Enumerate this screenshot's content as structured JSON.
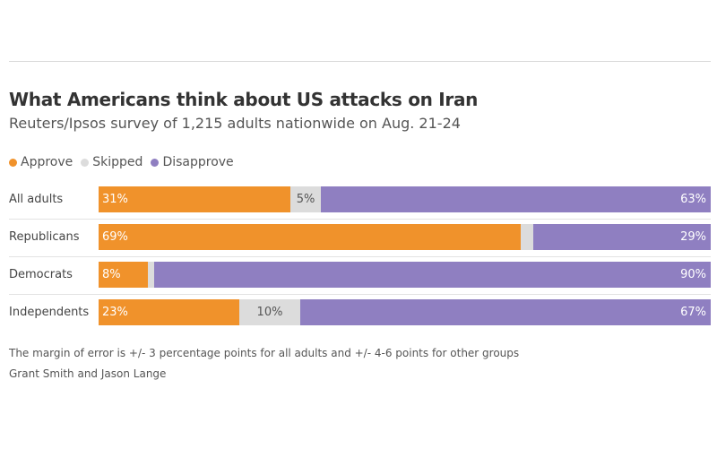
{
  "header": {
    "title": "What Americans think about US attacks on Iran",
    "subtitle": "Reuters/Ipsos survey of 1,215 adults nationwide on Aug. 21-24"
  },
  "colors": {
    "approve": "#f0922b",
    "skipped": "#dcdcdc",
    "disapprove": "#8f7fc1"
  },
  "chart_data": {
    "type": "bar",
    "stacked": true,
    "orientation": "horizontal",
    "title": "What Americans think about US attacks on Iran",
    "subtitle": "Reuters/Ipsos survey of 1,215 adults nationwide on Aug. 21-24",
    "categories": [
      "All adults",
      "Republicans",
      "Democrats",
      "Independents"
    ],
    "series": [
      {
        "name": "Approve",
        "values": [
          31,
          69,
          8,
          23
        ],
        "labels": [
          "31%",
          "69%",
          "8%",
          "23%"
        ],
        "color": "#f0922b"
      },
      {
        "name": "Skipped",
        "values": [
          5,
          2,
          1,
          10
        ],
        "labels": [
          "5%",
          "",
          "",
          "10%"
        ],
        "color": "#dcdcdc"
      },
      {
        "name": "Disapprove",
        "values": [
          63,
          29,
          90,
          67
        ],
        "labels": [
          "63%",
          "29%",
          "90%",
          "67%"
        ],
        "color": "#8f7fc1"
      }
    ],
    "xlim": [
      0,
      100
    ],
    "legend": "top-left",
    "grid": false
  },
  "footer": {
    "note": "The margin of error is +/- 3 percentage points for all adults and +/- 4-6 points for other groups",
    "credit": "Grant Smith and Jason Lange"
  }
}
